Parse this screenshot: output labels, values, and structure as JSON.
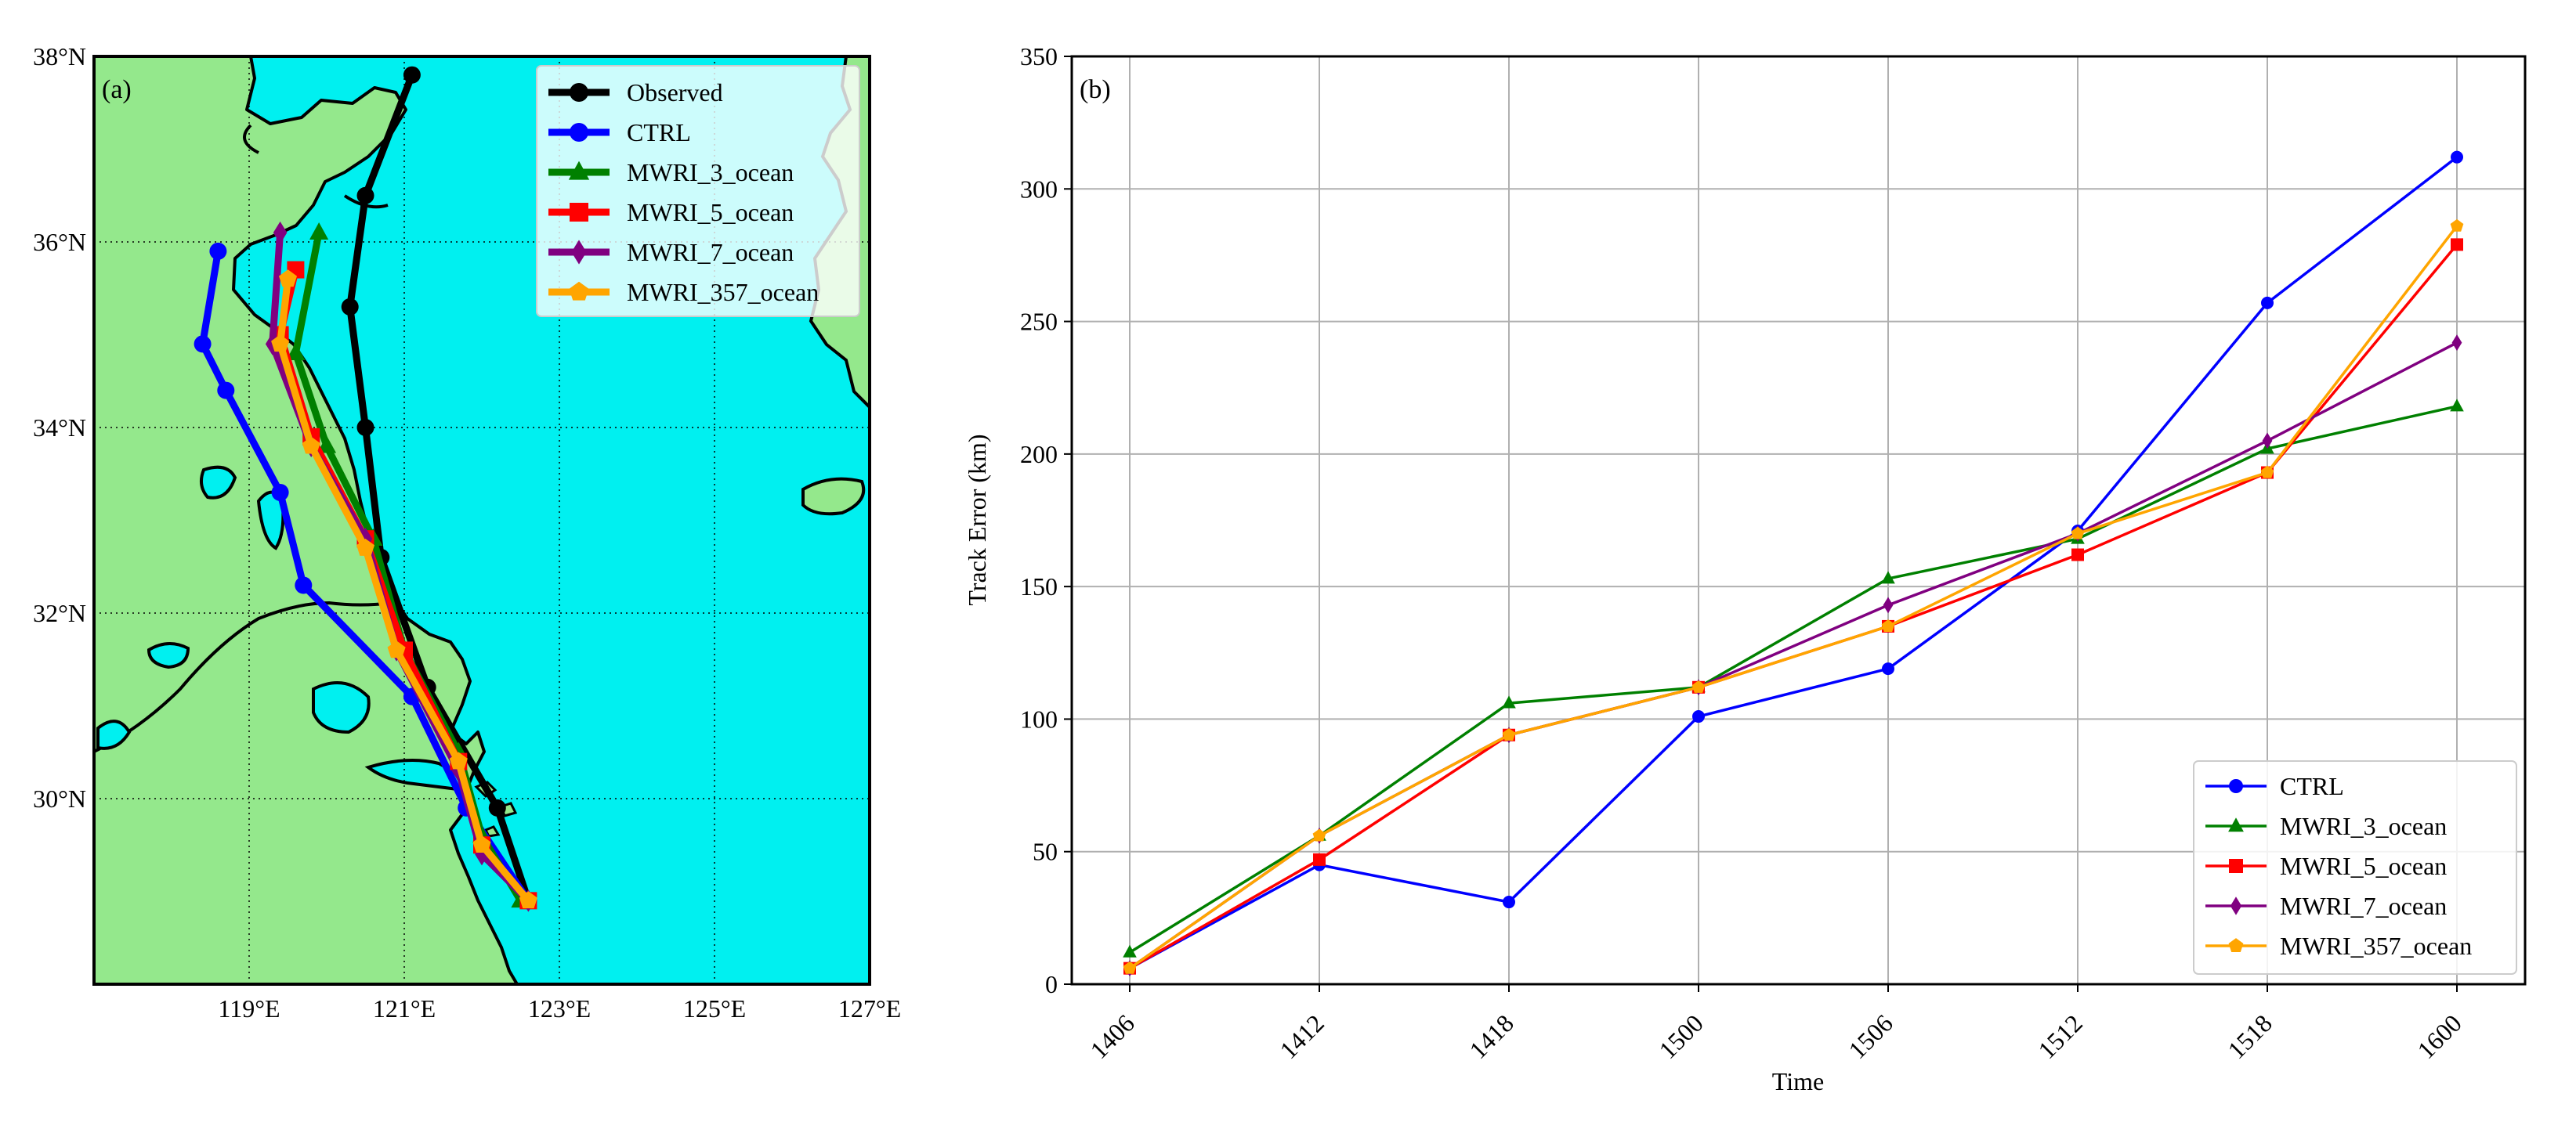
{
  "panels": {
    "a_label": "(a)",
    "b_label": "(b)"
  },
  "chart_data": [
    {
      "type": "line",
      "subtype": "map-track",
      "panel": "(a)",
      "xlim": [
        117,
        127
      ],
      "ylim": [
        28,
        38
      ],
      "x_ticks": [
        119,
        121,
        123,
        125,
        127
      ],
      "x_tick_labels": [
        "119°E",
        "121°E",
        "123°E",
        "125°E",
        "127°E"
      ],
      "y_ticks": [
        30,
        32,
        34,
        36,
        38
      ],
      "y_tick_labels": [
        "30°N",
        "32°N",
        "34°N",
        "36°N",
        "38°N"
      ],
      "grid": "dotted",
      "legend_position": "top-right",
      "map_colors": {
        "land": "#94e88c",
        "ocean": "#00f0f0"
      },
      "series": [
        {
          "name": "Observed",
          "color": "#000000",
          "marker": "circle",
          "lon": [
            122.6,
            122.2,
            121.3,
            120.7,
            120.5,
            120.3,
            120.5,
            121.1
          ],
          "lat": [
            28.9,
            29.9,
            31.2,
            32.6,
            34.0,
            35.3,
            36.5,
            37.8
          ]
        },
        {
          "name": "CTRL",
          "color": "#0000ff",
          "marker": "circle",
          "lon": [
            122.6,
            121.8,
            121.1,
            119.7,
            119.4,
            118.7,
            118.4,
            118.6
          ],
          "lat": [
            28.9,
            29.9,
            31.1,
            32.3,
            33.3,
            34.4,
            34.9,
            35.9
          ]
        },
        {
          "name": "MWRI_3_ocean",
          "color": "#008000",
          "marker": "triangle",
          "lon": [
            122.5,
            122.0,
            121.7,
            121.0,
            120.6,
            120.0,
            119.6,
            119.9
          ],
          "lat": [
            28.9,
            29.6,
            30.5,
            31.6,
            32.8,
            33.8,
            34.8,
            36.1
          ]
        },
        {
          "name": "MWRI_5_ocean",
          "color": "#ff0000",
          "marker": "square",
          "lon": [
            122.6,
            122.0,
            121.7,
            121.0,
            120.5,
            119.8,
            119.4,
            119.6
          ],
          "lat": [
            28.9,
            29.5,
            30.4,
            31.6,
            32.8,
            33.9,
            35.0,
            35.7
          ]
        },
        {
          "name": "MWRI_7_ocean",
          "color": "#800080",
          "marker": "diamond",
          "lon": [
            122.6,
            122.0,
            121.7,
            120.9,
            120.5,
            119.8,
            119.3,
            119.4
          ],
          "lat": [
            28.9,
            29.4,
            30.3,
            31.6,
            32.8,
            33.8,
            34.9,
            36.1
          ]
        },
        {
          "name": "MWRI_357_ocean",
          "color": "#ffa500",
          "marker": "pentagon",
          "lon": [
            122.6,
            122.0,
            121.7,
            120.9,
            120.5,
            119.8,
            119.4,
            119.5
          ],
          "lat": [
            28.9,
            29.5,
            30.4,
            31.6,
            32.7,
            33.8,
            34.9,
            35.6
          ]
        }
      ]
    },
    {
      "type": "line",
      "panel": "(b)",
      "xlabel": "Time",
      "ylabel": "Track Error (km)",
      "categories": [
        "1406",
        "1412",
        "1418",
        "1500",
        "1506",
        "1512",
        "1518",
        "1600"
      ],
      "ylim": [
        0,
        350
      ],
      "y_ticks": [
        0,
        50,
        100,
        150,
        200,
        250,
        300,
        350
      ],
      "grid": true,
      "legend_position": "bottom-right",
      "series": [
        {
          "name": "CTRL",
          "color": "#0000ff",
          "marker": "circle",
          "values": [
            6,
            45,
            31,
            101,
            119,
            171,
            257,
            312
          ]
        },
        {
          "name": "MWRI_3_ocean",
          "color": "#008000",
          "marker": "triangle",
          "values": [
            12,
            56,
            106,
            112,
            153,
            168,
            202,
            218
          ]
        },
        {
          "name": "MWRI_5_ocean",
          "color": "#ff0000",
          "marker": "square",
          "values": [
            6,
            47,
            94,
            112,
            135,
            162,
            193,
            279
          ]
        },
        {
          "name": "MWRI_7_ocean",
          "color": "#800080",
          "marker": "diamond",
          "values": [
            6,
            56,
            94,
            112,
            143,
            170,
            205,
            242
          ]
        },
        {
          "name": "MWRI_357_ocean",
          "color": "#ffa500",
          "marker": "pentagon",
          "values": [
            6,
            56,
            94,
            112,
            135,
            170,
            193,
            286
          ]
        }
      ]
    }
  ]
}
